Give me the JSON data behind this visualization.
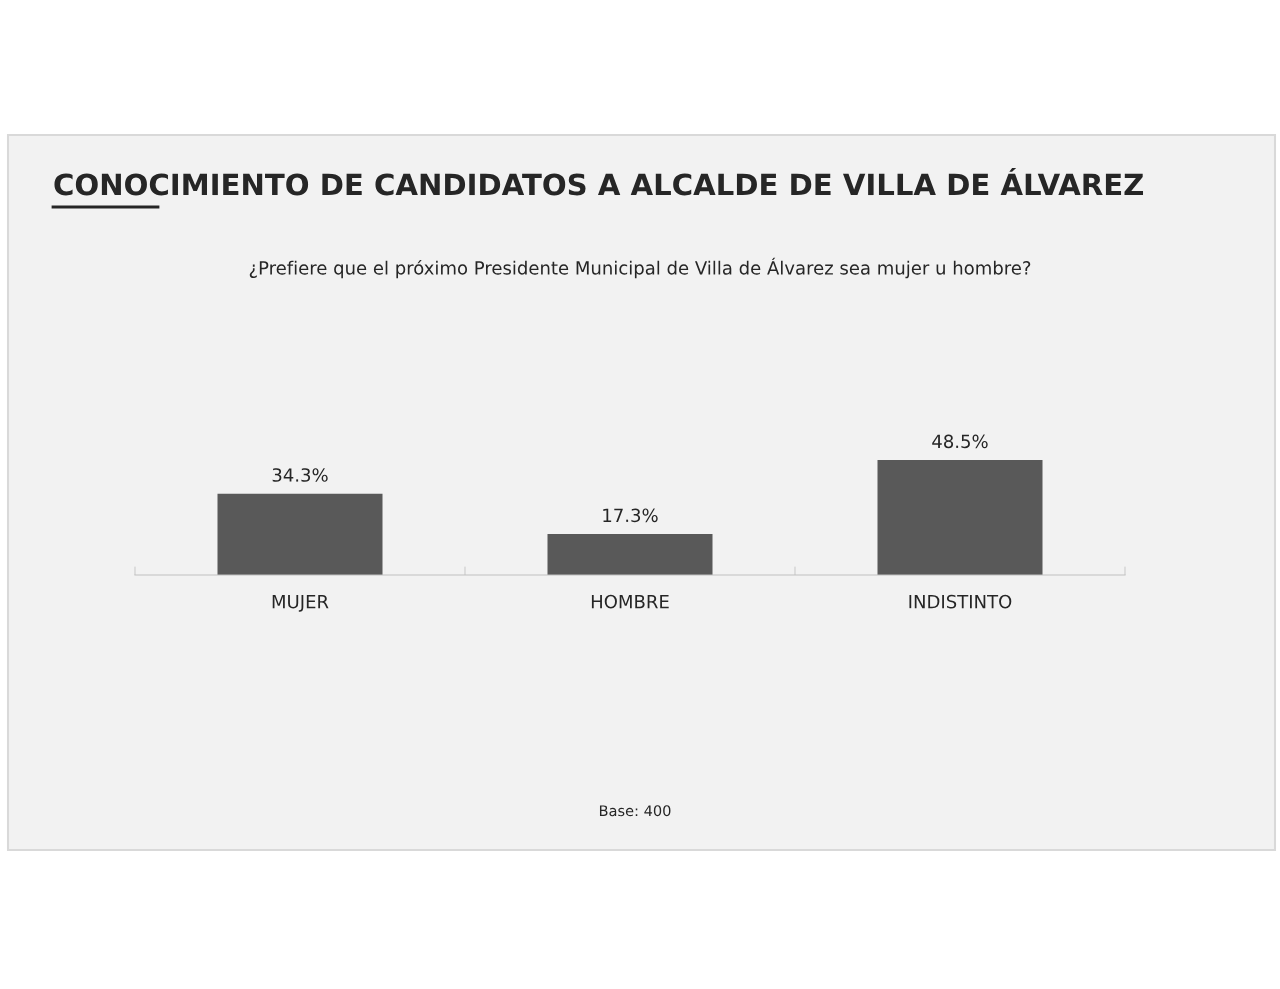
{
  "chart_data": {
    "type": "bar",
    "title": "CONOCIMIENTO DE CANDIDATOS A ALCALDE DE VILLA DE ÁLVAREZ",
    "subtitle": "¿Prefiere que el próximo Presidente Municipal de Villa de Álvarez sea mujer u hombre?",
    "categories": [
      "MUJER",
      "HOMBRE",
      "INDISTINTO"
    ],
    "values": [
      34.3,
      17.3,
      48.5
    ],
    "value_labels": [
      "34.3%",
      "17.3%",
      "48.5%"
    ],
    "color": "#595959",
    "annotations": [
      "Base: 400"
    ]
  }
}
